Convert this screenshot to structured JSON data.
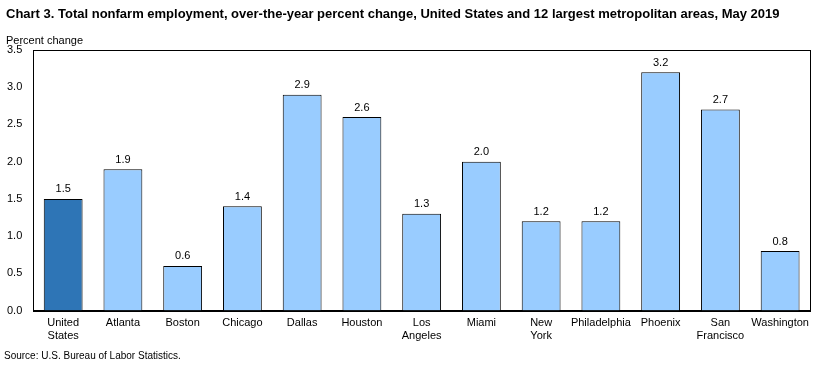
{
  "chart_data": {
    "type": "bar",
    "title": "Chart 3. Total nonfarm employment, over-the-year percent change, United States and 12 largest metropolitan areas, May 2019",
    "ylabel": "Percent change",
    "source": "Source: U.S. Bureau of Labor Statistics.",
    "categories": [
      "United States",
      "Atlanta",
      "Boston",
      "Chicago",
      "Dallas",
      "Houston",
      "Los Angeles",
      "Miami",
      "New York",
      "Philadelphia",
      "Phoenix",
      "San Francisco",
      "Washington"
    ],
    "values": [
      1.5,
      1.9,
      0.6,
      1.4,
      2.9,
      2.6,
      1.3,
      2.0,
      1.2,
      1.2,
      3.2,
      2.7,
      0.8
    ],
    "value_labels": [
      "1.5",
      "1.9",
      "0.6",
      "1.4",
      "2.9",
      "2.6",
      "1.3",
      "2.0",
      "1.2",
      "1.2",
      "3.2",
      "2.7",
      "0.8"
    ],
    "colors": [
      "#2e75b6",
      "#99ccff",
      "#99ccff",
      "#99ccff",
      "#99ccff",
      "#99ccff",
      "#99ccff",
      "#99ccff",
      "#99ccff",
      "#99ccff",
      "#99ccff",
      "#99ccff",
      "#99ccff"
    ],
    "ylim": [
      0,
      3.5
    ],
    "yticks": [
      {
        "value": 0,
        "label": "0.0"
      },
      0.5,
      {
        "value": 1,
        "label": "1.0"
      },
      1.5,
      {
        "value": 2,
        "label": "2.0"
      },
      2.5,
      {
        "value": 3,
        "label": "3.0"
      },
      3.5
    ],
    "grid": false,
    "data_labels": true
  }
}
